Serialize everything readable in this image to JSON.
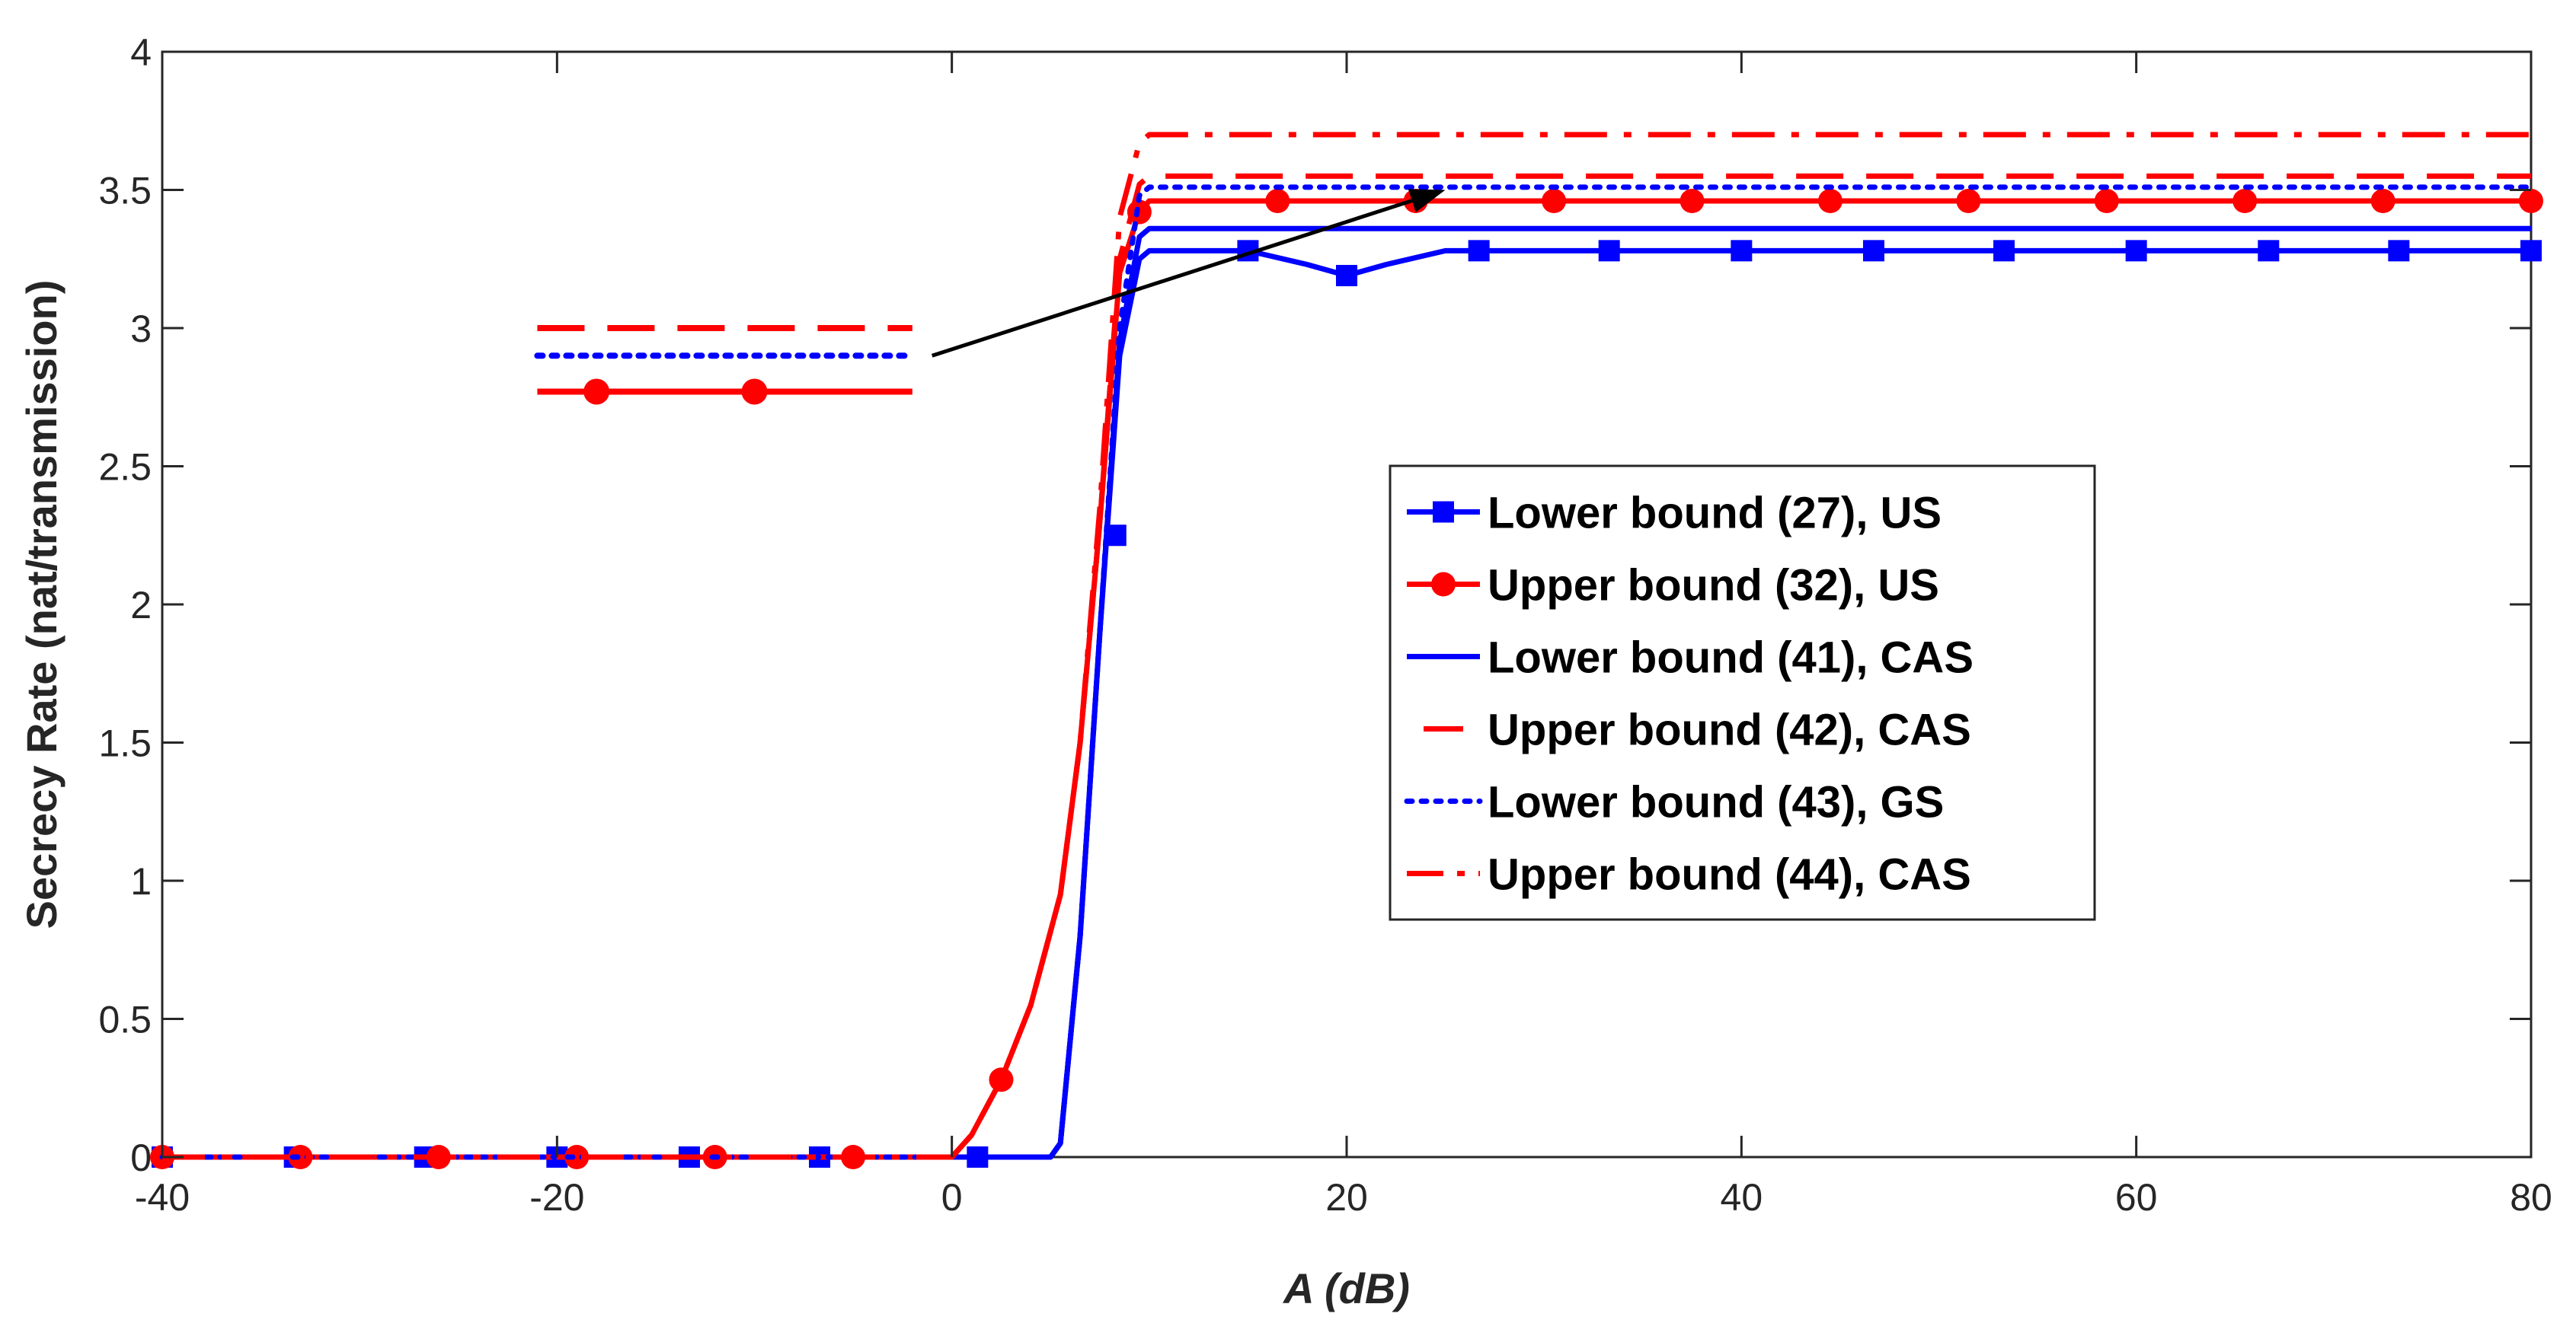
{
  "chart_data": {
    "type": "line",
    "title": "",
    "xlabel": "A (dB)",
    "ylabel": "Secrecy Rate (nat/transmission)",
    "xlim": [
      -40,
      80
    ],
    "ylim": [
      0,
      4
    ],
    "xticks": [
      -40,
      -20,
      0,
      20,
      40,
      60,
      80
    ],
    "yticks": [
      0,
      0.5,
      1,
      1.5,
      2,
      2.5,
      3,
      3.5,
      4
    ],
    "xtick_labels": [
      "-40",
      "-20",
      "0",
      "20",
      "40",
      "60",
      "80"
    ],
    "ytick_labels": [
      "0",
      "0.5",
      "1",
      "1.5",
      "2",
      "2.5",
      "3",
      "3.5",
      "4"
    ],
    "grid": false,
    "legend_position": "center-right",
    "series": [
      {
        "name": "Lower bound (27), US",
        "color": "#0000ff",
        "style": "solid",
        "marker": "square",
        "x": [
          -40,
          -10,
          0,
          5,
          5.5,
          6.5,
          7.5,
          8.5,
          9.5,
          10,
          15,
          18,
          20,
          22,
          25,
          80
        ],
        "y": [
          0,
          0,
          0,
          0,
          0.05,
          0.8,
          1.9,
          2.9,
          3.25,
          3.28,
          3.28,
          3.23,
          3.19,
          3.23,
          3.28,
          3.28
        ],
        "markers_x": [
          -40,
          -33.3,
          -26.7,
          -20,
          -13.3,
          -6.7,
          1.3,
          8.3,
          15,
          20,
          26.7,
          33.3,
          40,
          46.7,
          53.3,
          60,
          66.7,
          73.3,
          80
        ],
        "markers_y": [
          0,
          0,
          0,
          0,
          0,
          0,
          0,
          2.25,
          3.28,
          3.19,
          3.28,
          3.28,
          3.28,
          3.28,
          3.28,
          3.28,
          3.28,
          3.28,
          3.28
        ]
      },
      {
        "name": "Upper bound (32), US",
        "color": "#ff0000",
        "style": "solid",
        "marker": "circle",
        "x": [
          -40,
          -5,
          0,
          1,
          2.5,
          4,
          5.5,
          6.5,
          7.5,
          8.5,
          9.5,
          10,
          80
        ],
        "y": [
          0,
          0,
          0,
          0.08,
          0.28,
          0.55,
          0.95,
          1.5,
          2.3,
          3.2,
          3.42,
          3.46,
          3.46
        ],
        "markers_x": [
          -40,
          -33,
          -26,
          -19,
          -12,
          -5,
          2.5,
          9.5,
          16.5,
          23.5,
          30.5,
          37.5,
          44.5,
          51.5,
          58.5,
          65.5,
          72.5,
          80
        ],
        "markers_y": [
          0,
          0,
          0,
          0,
          0,
          0,
          0.28,
          3.42,
          3.46,
          3.46,
          3.46,
          3.46,
          3.46,
          3.46,
          3.46,
          3.46,
          3.46,
          3.46
        ]
      },
      {
        "name": "Lower bound (41), CAS",
        "color": "#0000ff",
        "style": "solid",
        "marker": "none",
        "x": [
          -40,
          0,
          5,
          5.5,
          6.5,
          7.5,
          8.5,
          9.5,
          10,
          80
        ],
        "y": [
          0,
          0,
          0,
          0.05,
          0.8,
          1.9,
          2.95,
          3.33,
          3.36,
          3.36
        ]
      },
      {
        "name": "Upper bound (42), CAS",
        "color": "#ff0000",
        "style": "dashed",
        "marker": "none",
        "x": [
          -40,
          0,
          1,
          2.5,
          4,
          5.5,
          6.5,
          7.5,
          8.5,
          9.5,
          10,
          80
        ],
        "y": [
          0,
          0,
          0.08,
          0.28,
          0.55,
          0.95,
          1.5,
          2.3,
          3.25,
          3.52,
          3.55,
          3.55
        ]
      },
      {
        "name": "Lower bound (43), GS",
        "color": "#0000ff",
        "style": "dotted",
        "marker": "none",
        "x": [
          -40,
          0,
          5,
          5.5,
          6.5,
          7.5,
          8.5,
          9.5,
          10,
          80
        ],
        "y": [
          0,
          0,
          0,
          0.05,
          0.8,
          1.9,
          3.0,
          3.48,
          3.51,
          3.51
        ]
      },
      {
        "name": "Upper bound (44), CAS",
        "color": "#ff0000",
        "style": "dashdot",
        "marker": "none",
        "x": [
          -40,
          0,
          1,
          2.5,
          4,
          5.5,
          6.5,
          7.5,
          8.5,
          9.5,
          10,
          80
        ],
        "y": [
          0,
          0,
          0.08,
          0.28,
          0.55,
          0.95,
          1.5,
          2.35,
          3.4,
          3.67,
          3.7,
          3.7
        ]
      }
    ],
    "inset": {
      "description": "zoomed copy of the plateau region",
      "lines": [
        {
          "series": "Upper bound (42), CAS",
          "y": 3.0
        },
        {
          "series": "Lower bound (43), GS",
          "y": 2.9
        },
        {
          "series": "Upper bound (32), US",
          "y": 2.77
        }
      ],
      "x_range": [
        -21,
        -2
      ],
      "arrow_from": [
        -1,
        2.9
      ],
      "arrow_to": [
        25,
        3.5
      ]
    }
  }
}
